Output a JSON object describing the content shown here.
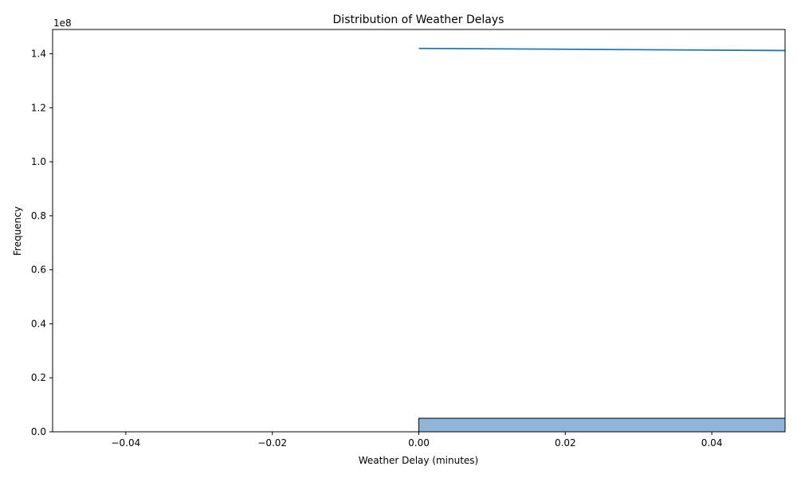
{
  "chart_data": {
    "type": "bar",
    "title": "Distribution of Weather Delays",
    "xlabel": "Weather Delay (minutes)",
    "ylabel": "Frequency",
    "y_offset_text": "1e8",
    "xlim": [
      -0.05,
      0.05
    ],
    "ylim": [
      0,
      149000000
    ],
    "x_ticks": [
      -0.04,
      -0.02,
      0.0,
      0.02,
      0.04
    ],
    "x_tick_labels": [
      "−0.04",
      "−0.02",
      "0.00",
      "0.02",
      "0.04"
    ],
    "y_ticks": [
      0,
      20000000,
      40000000,
      60000000,
      80000000,
      100000000,
      120000000,
      140000000
    ],
    "y_tick_labels": [
      "0.0",
      "0.2",
      "0.4",
      "0.6",
      "0.8",
      "1.0",
      "1.2",
      "1.4"
    ],
    "grid": false,
    "bars": [
      {
        "x_start": 0.0,
        "x_end": 0.05,
        "value": 5000000
      }
    ],
    "series": [
      {
        "type": "line",
        "x": [
          0.0,
          0.05
        ],
        "y": [
          142000000,
          141200000
        ]
      }
    ],
    "colors": {
      "bar_fill": "#8fb5d8",
      "bar_edge": "#000000",
      "line": "#1f77b4"
    }
  }
}
